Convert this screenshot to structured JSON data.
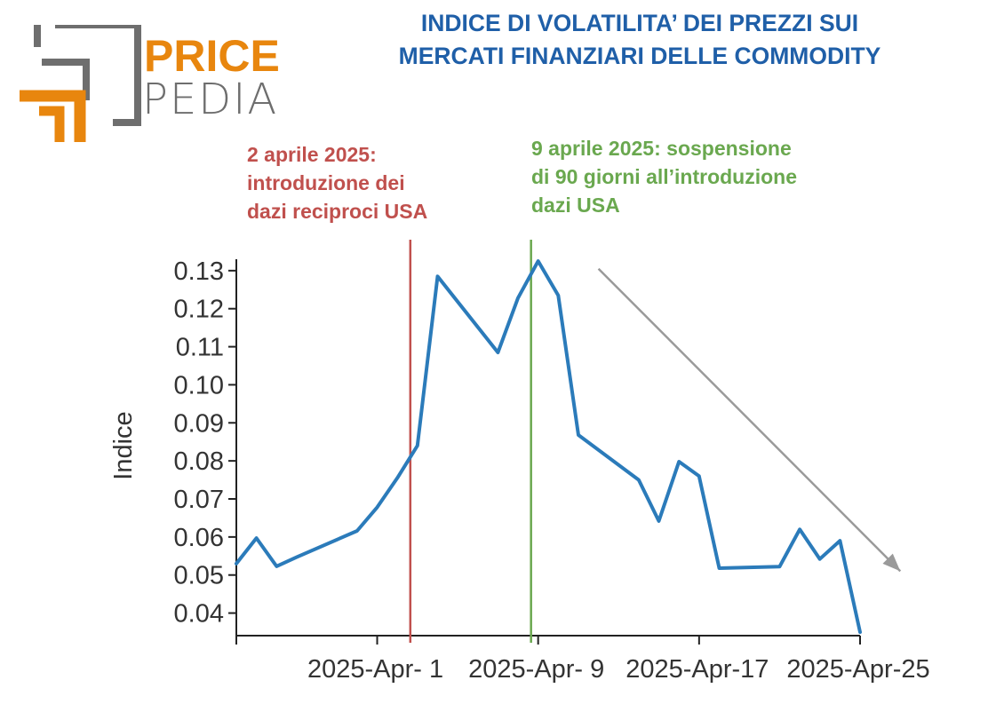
{
  "logo": {
    "word1": "PRICE",
    "word2": "PEDIA"
  },
  "title": {
    "line1": "INDICE DI VOLATILITA’ DEI PREZZI SUI",
    "line2": "MERCATI FINANZIARI DELLE COMMODITY"
  },
  "annotations": {
    "red": {
      "lines": [
        "2 aprile 2025:",
        "introduzione dei",
        "dazi reciproci USA"
      ],
      "color": "#c0504d",
      "date": "2025-04-02"
    },
    "green": {
      "lines": [
        "9 aprile 2025: sospensione",
        "di 90 giorni all’introduzione",
        "dazi USA"
      ],
      "color": "#6aa84f",
      "date": "2025-04-09"
    }
  },
  "chart_data": {
    "type": "line",
    "title": "INDICE DI VOLATILITA’ DEI PREZZI SUI MERCATI FINANZIARI DELLE COMMODITY",
    "xlabel": "",
    "ylabel": "Indice",
    "xlim": [
      "2025-03-25",
      "2025-04-25"
    ],
    "ylim": [
      0.035,
      0.133
    ],
    "x_ticks": [
      "2025-03-25",
      "2025-04-01",
      "2025-04-09",
      "2025-04-17",
      "2025-04-25"
    ],
    "x_tick_labels": [
      "",
      "2025-Apr- 1",
      "2025-Apr- 9",
      "2025-Apr-17",
      "2025-Apr-25"
    ],
    "y_ticks": [
      0.04,
      0.05,
      0.06,
      0.07,
      0.08,
      0.09,
      0.1,
      0.11,
      0.12,
      0.13
    ],
    "y_tick_labels": [
      "0.04",
      "0.05",
      "0.06",
      "0.07",
      "0.08",
      "0.09",
      "0.10",
      "0.11",
      "0.12",
      "0.13"
    ],
    "grid": false,
    "series": [
      {
        "color": "#2b7bba",
        "points": [
          [
            "2025-03-25",
            0.053
          ],
          [
            "2025-03-26",
            0.0597
          ],
          [
            "2025-03-27",
            0.0523
          ],
          [
            "2025-03-28",
            0.0547
          ],
          [
            "2025-03-31",
            0.0616
          ],
          [
            "2025-04-01",
            0.0678
          ],
          [
            "2025-04-02",
            0.0755
          ],
          [
            "2025-04-03",
            0.084
          ],
          [
            "2025-04-04",
            0.1285
          ],
          [
            "2025-04-07",
            0.1085
          ],
          [
            "2025-04-08",
            0.1228
          ],
          [
            "2025-04-09",
            0.1325
          ],
          [
            "2025-04-10",
            0.1235
          ],
          [
            "2025-04-11",
            0.0868
          ],
          [
            "2025-04-14",
            0.075
          ],
          [
            "2025-04-15",
            0.0642
          ],
          [
            "2025-04-16",
            0.0798
          ],
          [
            "2025-04-17",
            0.076
          ],
          [
            "2025-04-18",
            0.0518
          ],
          [
            "2025-04-21",
            0.0522
          ],
          [
            "2025-04-22",
            0.062
          ],
          [
            "2025-04-23",
            0.0542
          ],
          [
            "2025-04-24",
            0.059
          ],
          [
            "2025-04-25",
            0.035
          ]
        ]
      }
    ],
    "trend_arrow": {
      "from": [
        "2025-04-12",
        0.1305
      ],
      "to": [
        "2025-04-27",
        0.051
      ],
      "color": "#9a9a9a"
    },
    "vertical_lines": [
      {
        "x": "2025-04-03",
        "color": "#c0504d"
      },
      {
        "x": "2025-04-09",
        "color": "#6aa84f"
      }
    ]
  }
}
